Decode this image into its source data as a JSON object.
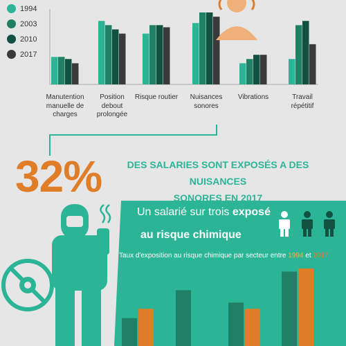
{
  "chart_data": {
    "type": "bar",
    "categories": [
      "Manutention manuelle de charges",
      "Position debout prolongée",
      "Risque routier",
      "Nuisances sonores",
      "Vibrations",
      "Travail répétitif"
    ],
    "category_lines": [
      [
        "Manutention",
        "manuelle de",
        "charges"
      ],
      [
        "Position",
        "debout",
        "prolongée"
      ],
      [
        "Risque routier"
      ],
      [
        "Nuisances",
        "sonores"
      ],
      [
        "Vibrations"
      ],
      [
        "Travail",
        "répétitif"
      ]
    ],
    "series": [
      {
        "name": "1994",
        "color": "#2bb596",
        "values": [
          13,
          30,
          24,
          29,
          10,
          12
        ]
      },
      {
        "name": "2003",
        "color": "#1f8066",
        "values": [
          13,
          28,
          28,
          34,
          12,
          28
        ]
      },
      {
        "name": "2010",
        "color": "#12513f",
        "values": [
          12,
          26,
          28,
          34,
          14,
          30
        ]
      },
      {
        "name": "2017",
        "color": "#3a3a3a",
        "values": [
          10,
          24,
          27,
          32,
          14,
          19
        ]
      }
    ],
    "ylim": [
      0,
      34
    ]
  },
  "stat": {
    "number": "32%",
    "line1": "DES SALARIES SONT EXPOSÉS A DES NUISANCES",
    "line2": "SONORES EN 2017"
  },
  "chemical": {
    "title_pre": "Un salarié sur trois ",
    "title_bold": "exposé",
    "title_line2": "au risque chimique",
    "subtitle_pre": "Taux d'exposition au risque chimique par secteur entre ",
    "year_a": "1994",
    "subtitle_mid": " et ",
    "year_b": "2017",
    "chart": {
      "type": "bar",
      "series": [
        {
          "name": "1994",
          "color": "#1f8066",
          "values": [
            45,
            90,
            70,
            120
          ]
        },
        {
          "name": "2017",
          "color": "#e07d29",
          "values": [
            60,
            0,
            60,
            125
          ]
        }
      ]
    }
  },
  "colors": {
    "teal": "#2bb596",
    "dark_teal": "#1f8066",
    "orange": "#e07d29",
    "bg": "#e6e6e6"
  }
}
